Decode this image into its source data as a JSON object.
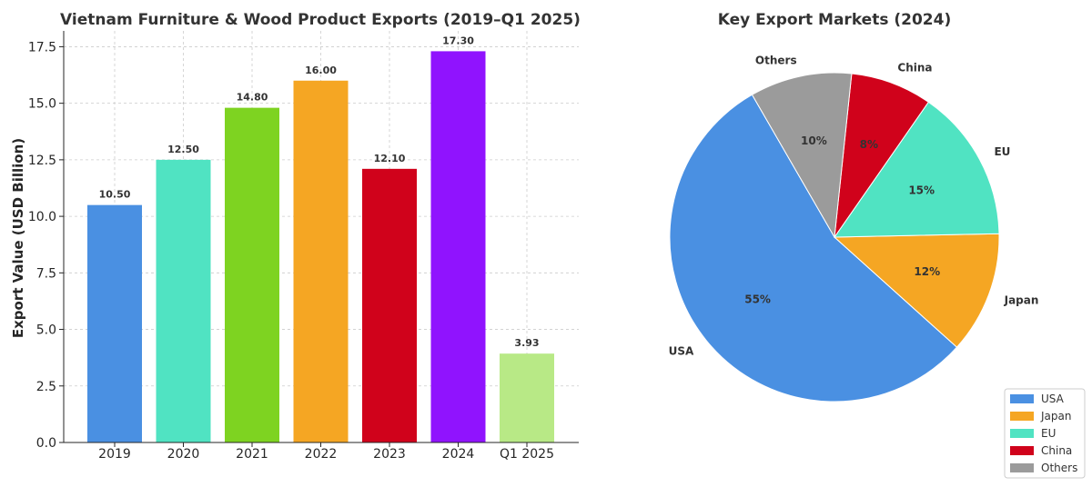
{
  "chart_data": [
    {
      "type": "bar",
      "title": "Vietnam Furniture & Wood Product Exports (2019–Q1 2025)",
      "xlabel": "",
      "ylabel": "Export Value (USD Billion)",
      "categories": [
        "2019",
        "2020",
        "2021",
        "2022",
        "2023",
        "2024",
        "Q1 2025"
      ],
      "values": [
        10.5,
        12.5,
        14.8,
        16.0,
        12.1,
        17.3,
        3.93
      ],
      "value_labels": [
        "10.50",
        "12.50",
        "14.80",
        "16.00",
        "12.10",
        "17.30",
        "3.93"
      ],
      "colors": [
        "#4A90E2",
        "#50E3C2",
        "#7ED321",
        "#F5A623",
        "#D0021B",
        "#9013FE",
        "#B8E986"
      ],
      "ylim": [
        0,
        18.2
      ],
      "yticks": [
        0,
        2.5,
        5,
        7.5,
        10,
        12.5,
        15,
        17.5
      ],
      "ytick_labels": [
        "0.0",
        "2.5",
        "5.0",
        "7.5",
        "10.0",
        "12.5",
        "15.0",
        "17.5"
      ],
      "grid": true
    },
    {
      "type": "pie",
      "title": "Key Export Markets (2024)",
      "labels": [
        "USA",
        "Japan",
        "EU",
        "China",
        "Others"
      ],
      "values": [
        55,
        12,
        15,
        8,
        10
      ],
      "pct_labels": [
        "55%",
        "12%",
        "15%",
        "8%",
        "10%"
      ],
      "colors": [
        "#4A90E2",
        "#F5A623",
        "#50E3C2",
        "#D0021B",
        "#9B9B9B"
      ],
      "start_angle_deg": 120,
      "legend_position": "lower-right"
    }
  ]
}
